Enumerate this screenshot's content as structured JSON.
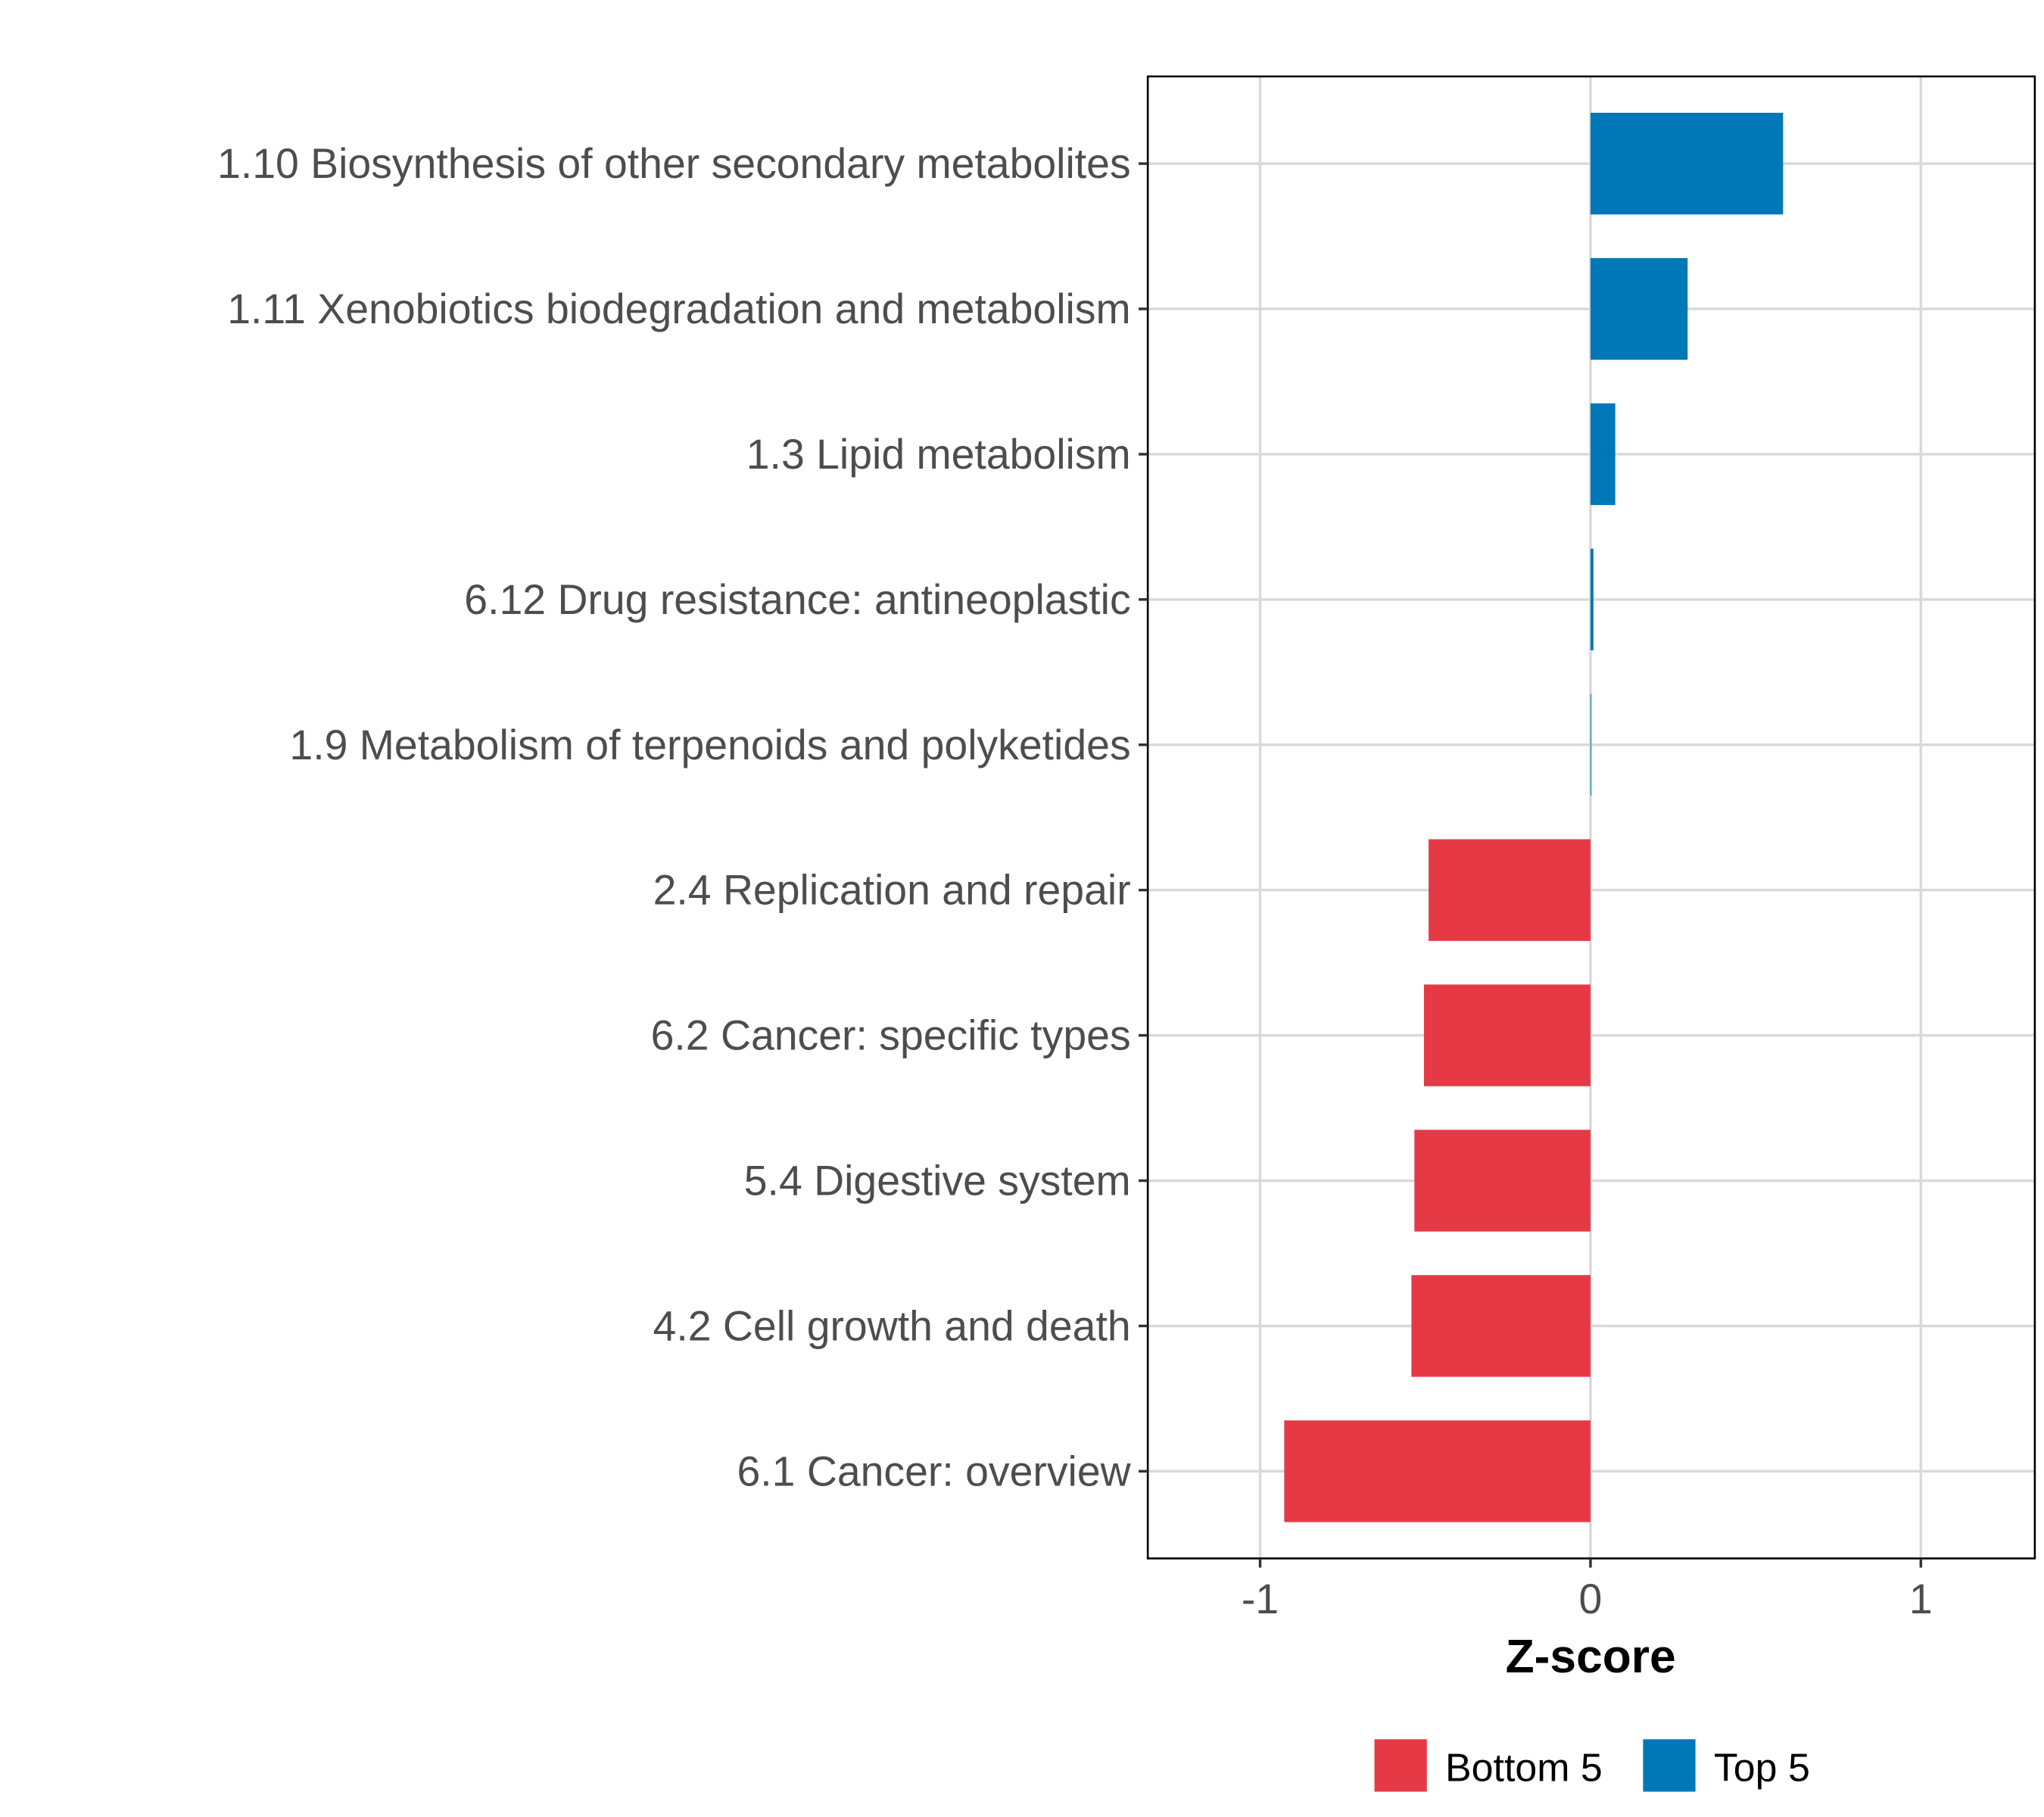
{
  "chart_data": {
    "type": "bar",
    "orientation": "horizontal",
    "title": "",
    "xlabel": "Z-score",
    "ylabel": "",
    "xlim": [
      -1.34,
      1.345
    ],
    "xticks": [
      -1,
      0,
      1
    ],
    "xtick_labels": [
      "-1",
      "0",
      "1"
    ],
    "grid": true,
    "legend_position": "bottom",
    "categories": [
      "1.10 Biosynthesis of other secondary metabolites",
      "1.11 Xenobiotics biodegradation and metabolism",
      "1.3 Lipid metabolism",
      "6.12 Drug resistance: antineoplastic",
      "1.9 Metabolism of terpenoids and polyketides",
      "2.4 Replication and repair",
      "6.2 Cancer: specific types",
      "5.4 Digestive system",
      "4.2 Cell growth and death",
      "6.1 Cancer: overview"
    ],
    "values": [
      0.583,
      0.294,
      0.075,
      0.009,
      0.002,
      -0.49,
      -0.504,
      -0.533,
      -0.542,
      -0.927
    ],
    "groups": [
      "Top 5",
      "Top 5",
      "Top 5",
      "Top 5",
      "Top 5",
      "Bottom 5",
      "Bottom 5",
      "Bottom 5",
      "Bottom 5",
      "Bottom 5"
    ],
    "legend": [
      {
        "label": "Bottom 5",
        "color": "#E63946"
      },
      {
        "label": "Top 5",
        "color": "#0077B6"
      }
    ]
  }
}
